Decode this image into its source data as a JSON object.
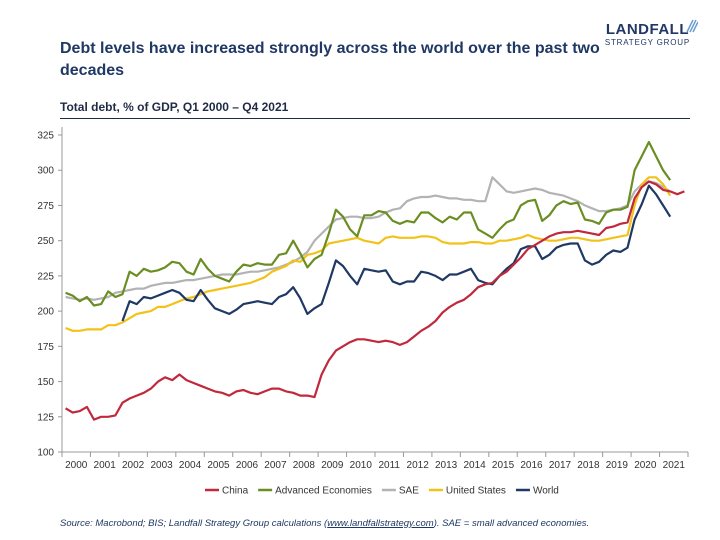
{
  "header": {
    "title": "Debt levels have increased strongly across the world over the past two decades",
    "logo_main": "LANDFALL",
    "logo_sub": "STRATEGY GROUP"
  },
  "colors": {
    "China": "#c0283b",
    "Advanced Economies": "#6b8e23",
    "SAE": "#b3b3b3",
    "United States": "#f2c21a",
    "World": "#1f3864",
    "logo_mark": "#6a9bd1"
  },
  "chart_data": {
    "type": "line",
    "title": "Total debt, % of GDP, Q1 2000 – Q4 2021",
    "xlabel": "",
    "ylabel": "",
    "ylim": [
      100,
      325
    ],
    "yticks": [
      100,
      125,
      150,
      175,
      200,
      225,
      250,
      275,
      300,
      325
    ],
    "xticks": [
      "2000",
      "2001",
      "2002",
      "2003",
      "2004",
      "2005",
      "2006",
      "2007",
      "2008",
      "2009",
      "2010",
      "2011",
      "2012",
      "2013",
      "2014",
      "2015",
      "2016",
      "2017",
      "2018",
      "2019",
      "2020",
      "2021"
    ],
    "x_start": "Q1 2000",
    "frequency": "quarterly",
    "grid": false,
    "legend": "bottom",
    "series": [
      {
        "name": "China",
        "values": [
          131,
          128,
          129,
          132,
          123,
          125,
          125,
          126,
          135,
          138,
          140,
          142,
          145,
          150,
          153,
          151,
          155,
          151,
          149,
          147,
          145,
          143,
          142,
          140,
          143,
          144,
          142,
          141,
          143,
          145,
          145,
          143,
          142,
          140,
          140,
          139,
          155,
          165,
          172,
          175,
          178,
          180,
          180,
          179,
          178,
          179,
          178,
          176,
          178,
          182,
          186,
          189,
          193,
          199,
          203,
          206,
          208,
          212,
          217,
          219,
          220,
          225,
          228,
          233,
          238,
          244,
          247,
          250,
          253,
          255,
          256,
          256,
          257,
          256,
          255,
          254,
          259,
          260,
          262,
          263,
          280,
          288,
          292,
          290,
          286,
          285,
          283,
          285
        ]
      },
      {
        "name": "Advanced Economies",
        "values": [
          213,
          211,
          207,
          210,
          204,
          205,
          214,
          210,
          212,
          228,
          225,
          230,
          228,
          229,
          231,
          235,
          234,
          228,
          226,
          237,
          230,
          225,
          223,
          221,
          228,
          233,
          232,
          234,
          233,
          233,
          240,
          241,
          250,
          241,
          231,
          237,
          240,
          255,
          272,
          267,
          258,
          253,
          268,
          268,
          271,
          270,
          264,
          262,
          264,
          263,
          270,
          270,
          266,
          263,
          267,
          265,
          270,
          270,
          258,
          255,
          252,
          258,
          263,
          265,
          275,
          278,
          279,
          264,
          268,
          275,
          278,
          276,
          277,
          265,
          264,
          262,
          270,
          272,
          272,
          274,
          300,
          310,
          320,
          310,
          300,
          293
        ]
      },
      {
        "name": "SAE",
        "values": [
          210,
          209,
          208,
          209,
          208,
          209,
          210,
          213,
          214,
          215,
          216,
          216,
          218,
          219,
          220,
          220,
          221,
          222,
          222,
          223,
          224,
          225,
          226,
          226,
          226,
          227,
          228,
          228,
          229,
          230,
          231,
          233,
          235,
          238,
          242,
          250,
          255,
          260,
          265,
          266,
          267,
          267,
          266,
          266,
          267,
          270,
          272,
          273,
          278,
          280,
          281,
          281,
          282,
          281,
          280,
          280,
          279,
          279,
          278,
          278,
          295,
          290,
          285,
          284,
          285,
          286,
          287,
          286,
          284,
          283,
          282,
          280,
          278,
          275,
          273,
          271,
          271,
          272,
          273,
          275,
          285,
          290,
          292,
          291,
          288,
          285
        ]
      },
      {
        "name": "United States",
        "values": [
          188,
          186,
          186,
          187,
          187,
          187,
          190,
          190,
          192,
          195,
          198,
          199,
          200,
          203,
          203,
          205,
          207,
          209,
          210,
          212,
          214,
          215,
          216,
          217,
          218,
          219,
          220,
          222,
          224,
          228,
          230,
          232,
          236,
          235,
          240,
          241,
          243,
          248,
          249,
          250,
          251,
          252,
          250,
          249,
          248,
          252,
          253,
          252,
          252,
          252,
          253,
          253,
          252,
          249,
          248,
          248,
          248,
          249,
          249,
          248,
          248,
          250,
          250,
          251,
          252,
          254,
          252,
          251,
          250,
          250,
          251,
          252,
          252,
          251,
          250,
          250,
          251,
          252,
          253,
          254,
          275,
          290,
          295,
          295,
          290,
          282
        ]
      },
      {
        "name": "World",
        "values": [
          null,
          null,
          null,
          null,
          null,
          null,
          null,
          null,
          193,
          207,
          205,
          210,
          209,
          211,
          213,
          215,
          213,
          208,
          207,
          215,
          208,
          202,
          200,
          198,
          201,
          205,
          206,
          207,
          206,
          205,
          210,
          212,
          217,
          209,
          198,
          202,
          205,
          220,
          236,
          232,
          225,
          219,
          230,
          229,
          228,
          229,
          221,
          219,
          221,
          221,
          228,
          227,
          225,
          222,
          226,
          226,
          228,
          230,
          222,
          220,
          219,
          225,
          230,
          234,
          244,
          246,
          246,
          237,
          240,
          245,
          247,
          248,
          248,
          236,
          233,
          235,
          240,
          243,
          242,
          245,
          265,
          276,
          289,
          283,
          275,
          267
        ]
      }
    ]
  },
  "footer": {
    "source_pre": "Source: Macrobond; BIS; Landfall Strategy Group calculations (",
    "source_link": "www.landfallstrategy.com",
    "source_post": ").  SAE = small advanced economies."
  }
}
